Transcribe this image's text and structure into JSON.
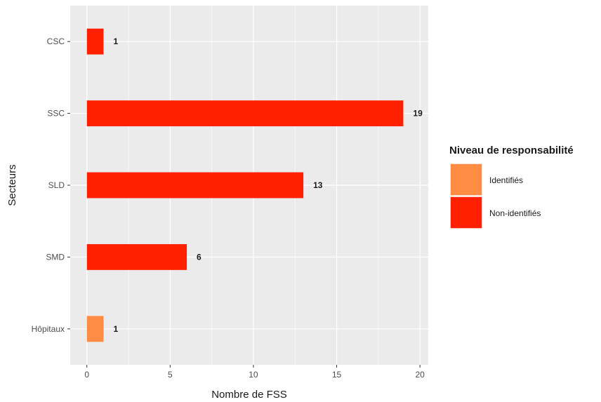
{
  "chart_data": {
    "type": "bar",
    "orientation": "horizontal",
    "xlabel": "Nombre de FSS",
    "ylabel": "Secteurs",
    "xlim": [
      -1,
      20.5
    ],
    "xticks": [
      0,
      5,
      10,
      15,
      20
    ],
    "categories": [
      "Hôpitaux",
      "SMD",
      "SLD",
      "SSC",
      "CSC"
    ],
    "values": [
      1,
      6,
      13,
      19,
      1
    ],
    "groups": [
      "Identifiés",
      "Non-identifiés",
      "Non-identifiés",
      "Non-identifiés",
      "Non-identifiés"
    ],
    "data_labels": [
      "1",
      "6",
      "13",
      "19",
      "1"
    ],
    "grid": true,
    "legend": {
      "title": "Niveau de responsabilité",
      "position": "right",
      "entries": [
        {
          "label": "Identifiés",
          "color": "#FF8C42"
        },
        {
          "label": "Non-identifiés",
          "color": "#FF2000"
        }
      ]
    }
  }
}
